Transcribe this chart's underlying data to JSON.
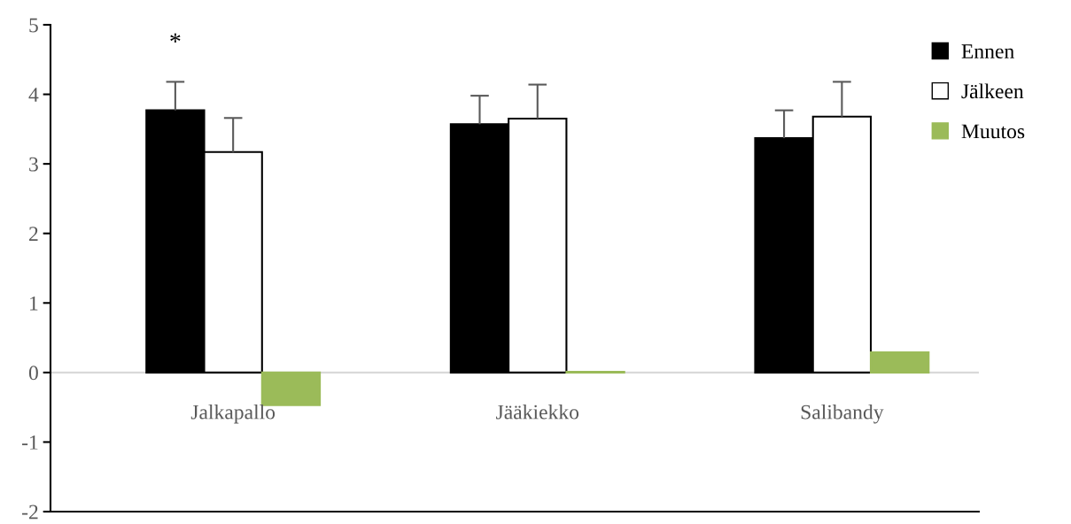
{
  "chart_data": {
    "type": "bar",
    "categories": [
      "Jalkapallo",
      "Jääkiekko",
      "Salibandy"
    ],
    "series": [
      {
        "name": "Ennen",
        "color": "#000000",
        "values": [
          3.77,
          3.57,
          3.37
        ],
        "errors": [
          [
            3.77,
            4.18
          ],
          [
            3.57,
            3.98
          ],
          [
            3.37,
            3.77
          ]
        ]
      },
      {
        "name": "Jälkeen",
        "color": "#ffffff",
        "values": [
          3.17,
          3.65,
          3.68
        ],
        "errors": [
          [
            3.17,
            3.66
          ],
          [
            3.65,
            4.14
          ],
          [
            3.68,
            4.18
          ]
        ]
      },
      {
        "name": "Muutos",
        "color": "#9bbb59",
        "values": [
          -0.47,
          0.01,
          0.29
        ]
      }
    ],
    "ylim": [
      -2,
      5
    ],
    "yticks": [
      -2,
      -1,
      0,
      1,
      2,
      3,
      4,
      5
    ],
    "annotations": [
      "*"
    ],
    "legend": "top right",
    "grid": false
  }
}
